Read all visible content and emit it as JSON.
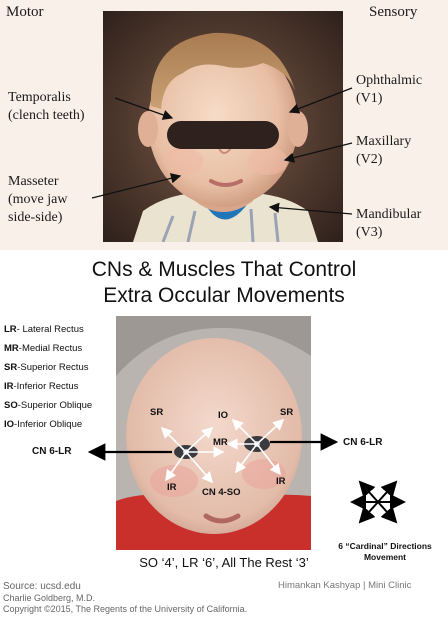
{
  "top": {
    "header_left": "Motor",
    "header_right": "Sensory",
    "labels_left": [
      {
        "line1": "Temporalis",
        "line2": "(clench teeth)"
      },
      {
        "line1": "Masseter",
        "line2": "(move jaw",
        "line3": "side-side)"
      }
    ],
    "labels_right": [
      {
        "line1": "Ophthalmic",
        "line2": "(V1)"
      },
      {
        "line1": "Maxillary",
        "line2": "(V2)"
      },
      {
        "line1": "Mandibular",
        "line2": "(V3)"
      }
    ]
  },
  "title": {
    "line1": "CNs & Muscles That Control",
    "line2": "Extra Occular Movements"
  },
  "legend": [
    {
      "abbr": "LR",
      "text": "- Lateral Rectus"
    },
    {
      "abbr": "MR",
      "text": "-Medial Rectus"
    },
    {
      "abbr": "SR",
      "text": "-Superior Rectus"
    },
    {
      "abbr": "IR",
      "text": "-Inferior Rectus"
    },
    {
      "abbr": "SO",
      "text": "-Superior Oblique"
    },
    {
      "abbr": "IO",
      "text": "-Inferior Oblique"
    }
  ],
  "eye_labels": {
    "cn6_left": "CN 6-LR",
    "cn6_right": "CN 6-LR",
    "sr_left": "SR",
    "io_center": "IO",
    "sr_right": "SR",
    "mr": "MR",
    "ir_left": "IR",
    "cn4": "CN 4-SO",
    "ir_right": "IR"
  },
  "cardinal": {
    "line1": "6 “Cardinal” Directions",
    "line2": "Movement"
  },
  "mnemonic": "SO ‘4’, LR ‘6’, All The Rest ‘3’",
  "footer": {
    "source": "Source: ucsd.edu",
    "author": "Charlie Goldberg, M.D.",
    "copyright": "Copyright ©2015, The Regents of the University of California.",
    "credit": "Himankan Kashyap | Mini Clinic"
  }
}
